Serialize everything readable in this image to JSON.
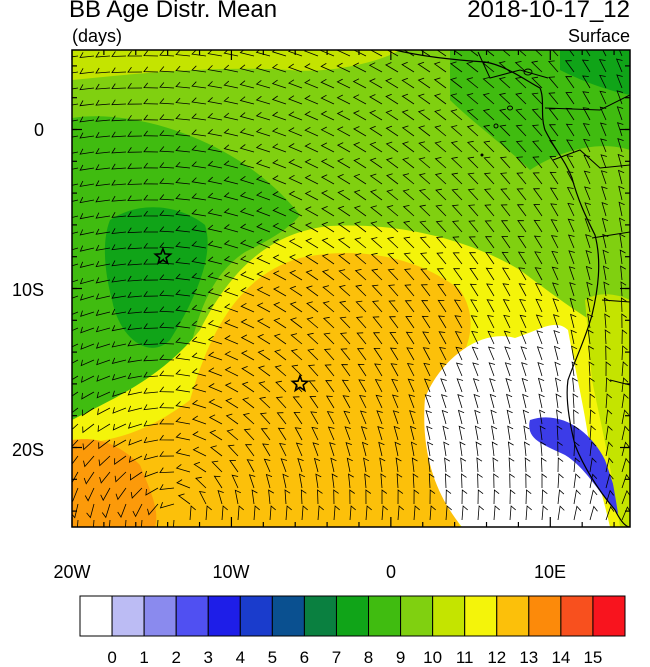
{
  "header": {
    "title": "BB Age Distr. Mean",
    "units": "(days)",
    "datetime": "2018-10-17_12",
    "level": "Surface"
  },
  "axes": {
    "lon_ticks": [
      "20W",
      "10W",
      "0",
      "10E"
    ],
    "lat_ticks": [
      "0",
      "10S",
      "20S"
    ],
    "lon_range": [
      -20,
      15
    ],
    "lat_range": [
      -25,
      5
    ]
  },
  "markers": [
    {
      "name": "star-west",
      "lon": -14.3,
      "lat": -8.0
    },
    {
      "name": "star-central",
      "lon": -5.7,
      "lat": -16.0
    }
  ],
  "colorbar": {
    "labels": [
      "0",
      "1",
      "2",
      "3",
      "4",
      "5",
      "6",
      "7",
      "8",
      "9",
      "10",
      "11",
      "12",
      "13",
      "14",
      "15"
    ],
    "colors": [
      "#ffffff",
      "#bcbcf4",
      "#8a8aee",
      "#5050f2",
      "#1e1ee8",
      "#1a3ccc",
      "#0a5090",
      "#0a8040",
      "#10a418",
      "#40bc10",
      "#80d010",
      "#c4e400",
      "#f4f40a",
      "#fcc00a",
      "#fc8a0a",
      "#f8501e",
      "#f8141e"
    ]
  }
}
